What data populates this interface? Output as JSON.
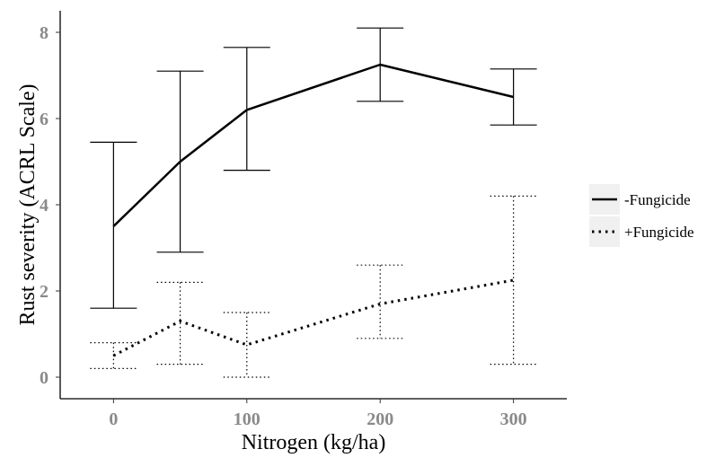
{
  "chart_data": {
    "type": "line",
    "xlabel": "Nitrogen (kg/ha)",
    "ylabel": "Rust severity (ACRL Scale)",
    "x": [
      0,
      50,
      100,
      200,
      300
    ],
    "x_ticks": [
      "0",
      "100",
      "200",
      "300"
    ],
    "y_ticks": [
      "0",
      "2",
      "4",
      "6",
      "8"
    ],
    "xlim": [
      -40,
      340
    ],
    "ylim": [
      -0.5,
      8.5
    ],
    "grid": false,
    "legend_position": "right",
    "series": [
      {
        "name": "-Fungicide",
        "style": "solid",
        "values": [
          3.5,
          5.0,
          6.2,
          7.25,
          6.5
        ],
        "err_low": [
          1.6,
          2.9,
          4.8,
          6.4,
          5.85
        ],
        "err_high": [
          5.45,
          7.1,
          7.65,
          8.1,
          7.15
        ]
      },
      {
        "name": "+Fungicide",
        "style": "dotted",
        "values": [
          0.5,
          1.3,
          0.75,
          1.7,
          2.25
        ],
        "err_low": [
          0.2,
          0.3,
          0.0,
          0.9,
          0.3
        ],
        "err_high": [
          0.8,
          2.2,
          1.5,
          2.6,
          4.2
        ]
      }
    ]
  }
}
